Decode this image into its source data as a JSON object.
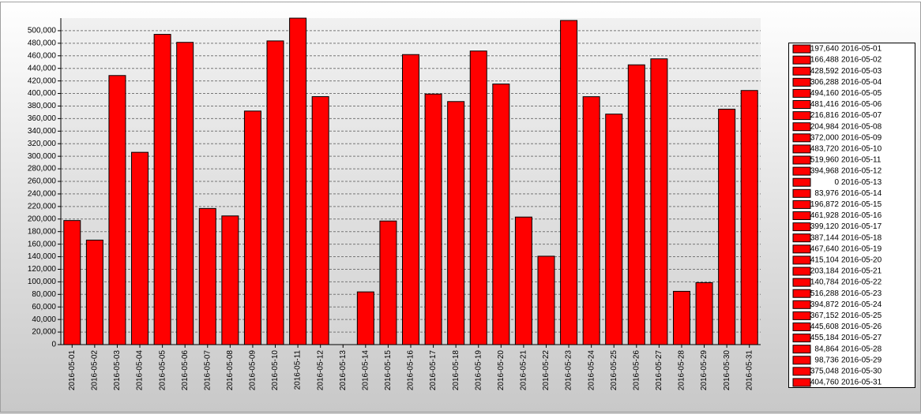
{
  "chart_data": {
    "type": "bar",
    "categories": [
      "2016-05-01",
      "2016-05-02",
      "2016-05-03",
      "2016-05-04",
      "2016-05-05",
      "2016-05-06",
      "2016-05-07",
      "2016-05-08",
      "2016-05-09",
      "2016-05-10",
      "2016-05-11",
      "2016-05-12",
      "2016-05-13",
      "2016-05-14",
      "2016-05-15",
      "2016-05-16",
      "2016-05-17",
      "2016-05-18",
      "2016-05-19",
      "2016-05-20",
      "2016-05-21",
      "2016-05-22",
      "2016-05-23",
      "2016-05-24",
      "2016-05-25",
      "2016-05-26",
      "2016-05-27",
      "2016-05-28",
      "2016-05-29",
      "2016-05-30",
      "2016-05-31"
    ],
    "values": [
      197640,
      166488,
      428592,
      306288,
      494160,
      481416,
      216816,
      204984,
      372000,
      483720,
      519960,
      394968,
      0,
      83976,
      196872,
      461928,
      399120,
      387144,
      467640,
      415104,
      203184,
      140784,
      516288,
      394872,
      367152,
      445608,
      455184,
      84864,
      98736,
      375048,
      404760
    ],
    "value_labels": [
      "197,640",
      "166,488",
      "428,592",
      "306,288",
      "494,160",
      "481,416",
      "216,816",
      "204,984",
      "372,000",
      "483,720",
      "519,960",
      "394,968",
      "0",
      "83,976",
      "196,872",
      "461,928",
      "399,120",
      "387,144",
      "467,640",
      "415,104",
      "203,184",
      "140,784",
      "516,288",
      "394,872",
      "367,152",
      "445,608",
      "455,184",
      "84,864",
      "98,736",
      "375,048",
      "404,760"
    ],
    "color": "#ff0000",
    "ylim": [
      0,
      520000
    ],
    "yticks": [
      0,
      {
        "value": 20000,
        "label": "20,000"
      },
      {
        "value": 40000,
        "label": "40,000"
      },
      {
        "value": 60000,
        "label": "60,000"
      },
      {
        "value": 80000,
        "label": "80,000"
      },
      {
        "value": 100000,
        "label": "100,000"
      },
      {
        "value": 120000,
        "label": "120,000"
      },
      {
        "value": 140000,
        "label": "140,000"
      },
      {
        "value": 160000,
        "label": "160,000"
      },
      {
        "value": 180000,
        "label": "180,000"
      },
      {
        "value": 200000,
        "label": "200,000"
      },
      {
        "value": 220000,
        "label": "220,000"
      },
      {
        "value": 240000,
        "label": "240,000"
      },
      {
        "value": 260000,
        "label": "260,000"
      },
      {
        "value": 280000,
        "label": "280,000"
      },
      {
        "value": 300000,
        "label": "300,000"
      },
      {
        "value": 320000,
        "label": "320,000"
      },
      {
        "value": 340000,
        "label": "340,000"
      },
      {
        "value": 360000,
        "label": "360,000"
      },
      {
        "value": 380000,
        "label": "380,000"
      },
      {
        "value": 400000,
        "label": "400,000"
      },
      {
        "value": 420000,
        "label": "420,000"
      },
      {
        "value": 440000,
        "label": "440,000"
      },
      {
        "value": 460000,
        "label": "460,000"
      },
      {
        "value": 480000,
        "label": "480,000"
      },
      {
        "value": 500000,
        "label": "500,000"
      }
    ],
    "grid": true,
    "legend": "right"
  }
}
